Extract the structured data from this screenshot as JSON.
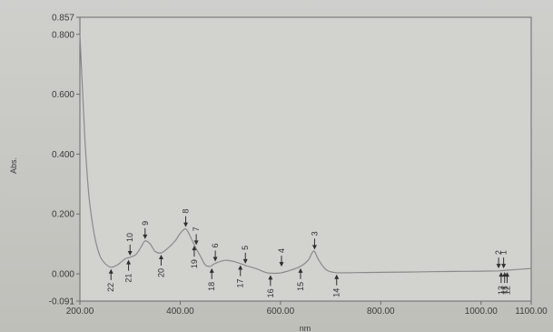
{
  "chart_data": {
    "type": "line",
    "xlabel": "nm",
    "ylabel": "Abs.",
    "xlim": [
      200,
      1100
    ],
    "ylim": [
      -0.091,
      0.857
    ],
    "x_ticks": [
      200,
      400,
      600,
      800,
      1000,
      1100
    ],
    "x_tick_labels": [
      "200.00",
      "400.00",
      "600.00",
      "800.00",
      "1000.00",
      "1100.00"
    ],
    "y_ticks": [
      -0.091,
      0.0,
      0.2,
      0.4,
      0.6,
      0.8,
      0.857
    ],
    "y_tick_labels": [
      "-0.091",
      "0.000",
      "0.200",
      "0.400",
      "0.600",
      "0.800",
      "0.857"
    ],
    "grid": false,
    "legend": "none",
    "series": [
      {
        "color": "#8a8a8a",
        "x": [
          200,
          205,
          210,
          215,
          220,
          230,
          240,
          250,
          262,
          275,
          290,
          300,
          312,
          322,
          330,
          340,
          350,
          362,
          375,
          390,
          400,
          411,
          420,
          430,
          440,
          450,
          460,
          470,
          490,
          510,
          530,
          550,
          570,
          580,
          600,
          620,
          640,
          655,
          663,
          668,
          675,
          690,
          710,
          750,
          800,
          850,
          900,
          950,
          1000,
          1035,
          1050,
          1100
        ],
        "y": [
          0.8,
          0.62,
          0.45,
          0.32,
          0.23,
          0.12,
          0.06,
          0.035,
          0.022,
          0.03,
          0.05,
          0.055,
          0.065,
          0.09,
          0.11,
          0.1,
          0.075,
          0.07,
          0.085,
          0.11,
          0.135,
          0.15,
          0.125,
          0.09,
          0.06,
          0.03,
          0.025,
          0.035,
          0.045,
          0.04,
          0.028,
          0.018,
          0.005,
          0.002,
          0.003,
          0.012,
          0.025,
          0.045,
          0.07,
          0.075,
          0.05,
          0.015,
          0.004,
          0.004,
          0.005,
          0.006,
          0.007,
          0.008,
          0.009,
          0.01,
          0.012,
          0.018
        ]
      }
    ],
    "peaks": [
      {
        "label": "1",
        "x": 1045,
        "y": 0.012,
        "dir": "down"
      },
      {
        "label": "2",
        "x": 1035,
        "y": 0.012,
        "dir": "down"
      },
      {
        "label": "3",
        "x": 668,
        "y": 0.075,
        "dir": "down"
      },
      {
        "label": "4",
        "x": 602,
        "y": 0.018,
        "dir": "down"
      },
      {
        "label": "5",
        "x": 530,
        "y": 0.028,
        "dir": "down"
      },
      {
        "label": "6",
        "x": 470,
        "y": 0.035,
        "dir": "down"
      },
      {
        "label": "7",
        "x": 432,
        "y": 0.09,
        "dir": "down"
      },
      {
        "label": "8",
        "x": 411,
        "y": 0.15,
        "dir": "down"
      },
      {
        "label": "9",
        "x": 330,
        "y": 0.11,
        "dir": "down"
      },
      {
        "label": "10",
        "x": 300,
        "y": 0.055,
        "dir": "down"
      },
      {
        "label": "11",
        "x": 1047,
        "y": 0.012,
        "dir": "up"
      },
      {
        "label": "12",
        "x": 1052,
        "y": 0.012,
        "dir": "up"
      },
      {
        "label": "13",
        "x": 1040,
        "y": 0.012,
        "dir": "up"
      },
      {
        "label": "14",
        "x": 712,
        "y": 0.004,
        "dir": "up"
      },
      {
        "label": "15",
        "x": 640,
        "y": 0.025,
        "dir": "up"
      },
      {
        "label": "16",
        "x": 580,
        "y": 0.002,
        "dir": "up"
      },
      {
        "label": "17",
        "x": 520,
        "y": 0.035,
        "dir": "up"
      },
      {
        "label": "18",
        "x": 463,
        "y": 0.025,
        "dir": "up"
      },
      {
        "label": "19",
        "x": 428,
        "y": 0.1,
        "dir": "up"
      },
      {
        "label": "20",
        "x": 362,
        "y": 0.07,
        "dir": "up"
      },
      {
        "label": "21",
        "x": 297,
        "y": 0.053,
        "dir": "up"
      },
      {
        "label": "22",
        "x": 262,
        "y": 0.022,
        "dir": "up"
      }
    ]
  }
}
